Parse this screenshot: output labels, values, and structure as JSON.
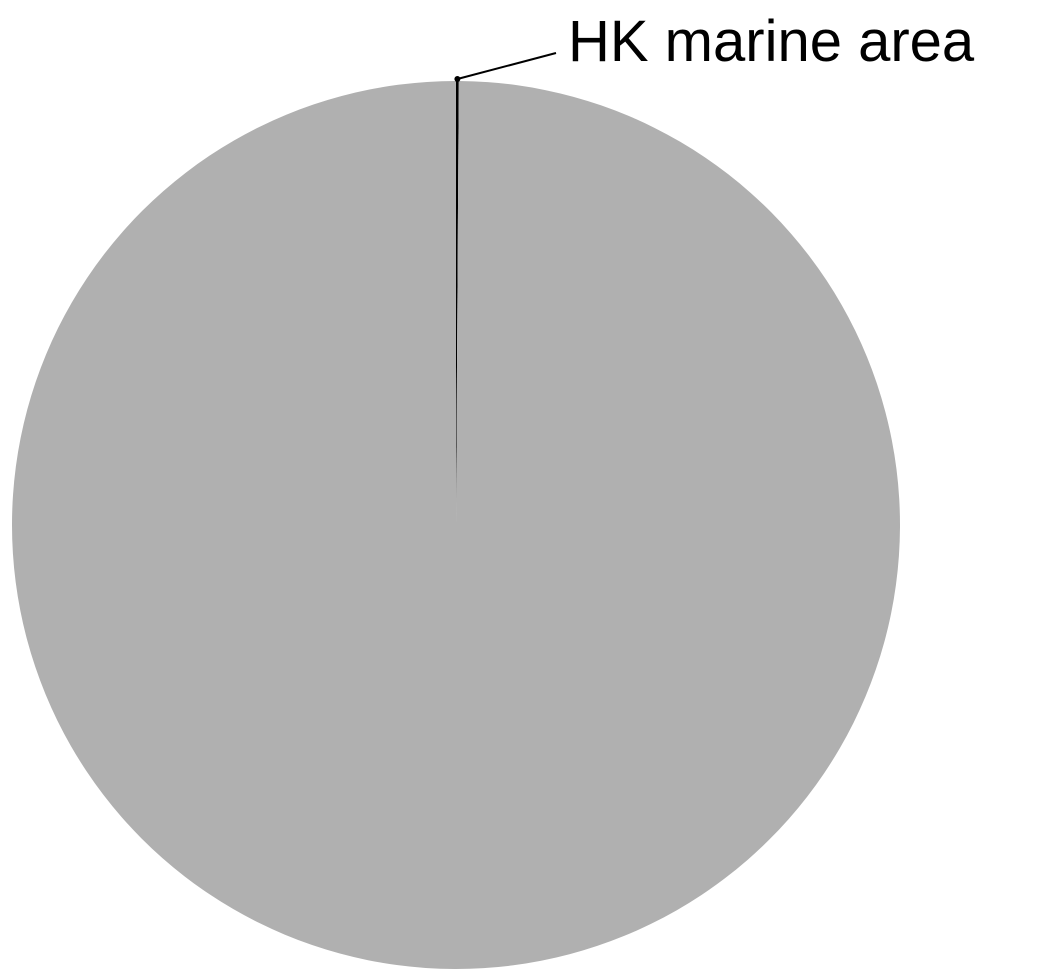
{
  "chart_data": {
    "type": "pie",
    "title": "",
    "slices": [
      {
        "label": "HK marine area",
        "value": 0.1,
        "color": "#000000"
      },
      {
        "label": "",
        "value": 99.9,
        "color": "#b0b0b0"
      }
    ],
    "legend": "none",
    "data_labels": "outside-with-leader"
  }
}
